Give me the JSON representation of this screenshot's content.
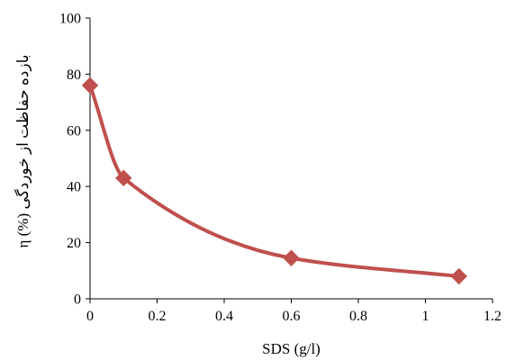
{
  "chart_data": {
    "type": "line",
    "xlabel": "SDS (g/l)",
    "ylabel": "η (%) بازده حفاظت از خوردگی",
    "xlim": [
      0,
      1.2
    ],
    "ylim": [
      0,
      100
    ],
    "x_ticks": [
      "0",
      "0.2",
      "0.4",
      "0.6",
      "0.8",
      "1",
      "1.2"
    ],
    "y_ticks": [
      "0",
      "20",
      "40",
      "60",
      "80",
      "100"
    ],
    "grid": false,
    "series": [
      {
        "x": [
          0,
          0.1,
          0.6,
          1.1
        ],
        "values": [
          76,
          43,
          14.5,
          8
        ],
        "color": "#c0504d",
        "marker": "diamond",
        "smooth": true
      }
    ]
  }
}
